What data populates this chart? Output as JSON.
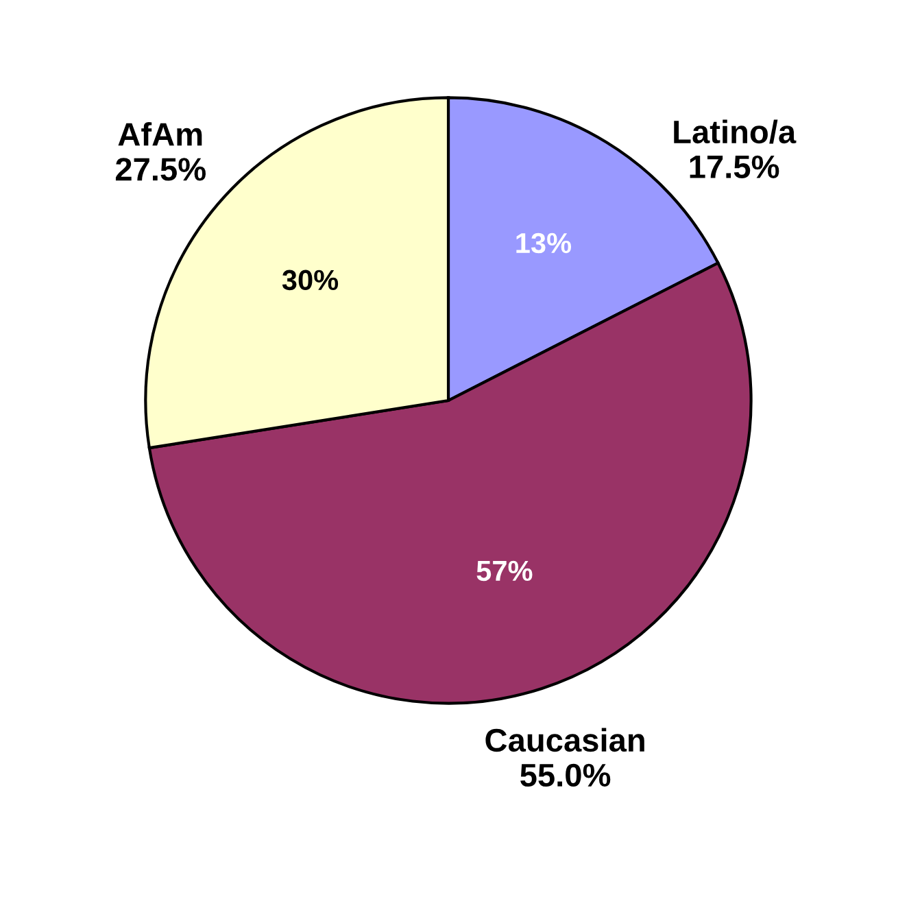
{
  "chart_data": {
    "type": "pie",
    "categories": [
      "Latino/a",
      "Caucasian",
      "AfAm"
    ],
    "values": [
      17.5,
      55.0,
      27.5
    ],
    "value_labels": [
      "17.5%",
      "55.0%",
      "27.5%"
    ],
    "colors": [
      "#9999ff",
      "#993366",
      "#ffffcc"
    ],
    "annotations": [
      "13%",
      "57%",
      "30%"
    ]
  }
}
